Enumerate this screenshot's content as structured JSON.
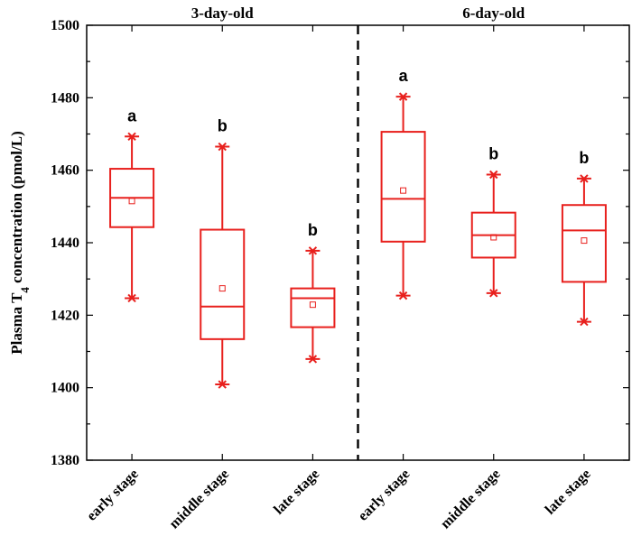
{
  "chart_data": {
    "type": "box",
    "ylabel_prefix": "Plasma T",
    "ylabel_sub": "4",
    "ylabel_suffix": " concentration (pmol/L)",
    "ylim": [
      1380,
      1500
    ],
    "yticks": [
      1380,
      1400,
      1420,
      1440,
      1460,
      1480,
      1500
    ],
    "groups": [
      {
        "title": "3-day-old"
      },
      {
        "title": "6-day-old"
      }
    ],
    "categories": [
      "early stage",
      "middle stage",
      "late stage",
      "early stage",
      "middle stage",
      "late stage"
    ],
    "boxes": [
      {
        "min": 1424.7,
        "q1": 1444.3,
        "median": 1452.4,
        "q3": 1460.4,
        "max": 1469.3,
        "mean": 1451.5,
        "letter": "a"
      },
      {
        "min": 1400.9,
        "q1": 1413.4,
        "median": 1422.4,
        "q3": 1443.6,
        "max": 1466.5,
        "mean": 1427.4,
        "letter": "b"
      },
      {
        "min": 1407.9,
        "q1": 1416.7,
        "median": 1424.7,
        "q3": 1427.4,
        "max": 1437.8,
        "mean": 1422.9,
        "letter": "b"
      },
      {
        "min": 1425.4,
        "q1": 1440.3,
        "median": 1452.1,
        "q3": 1470.6,
        "max": 1480.3,
        "mean": 1454.4,
        "letter": "a"
      },
      {
        "min": 1426.1,
        "q1": 1435.9,
        "median": 1442.1,
        "q3": 1448.3,
        "max": 1458.8,
        "mean": 1441.5,
        "letter": "b"
      },
      {
        "min": 1418.2,
        "q1": 1429.2,
        "median": 1443.4,
        "q3": 1450.4,
        "max": 1457.7,
        "mean": 1440.6,
        "letter": "b"
      }
    ],
    "colors": {
      "box": "#e8201d",
      "axis": "#000000"
    }
  }
}
